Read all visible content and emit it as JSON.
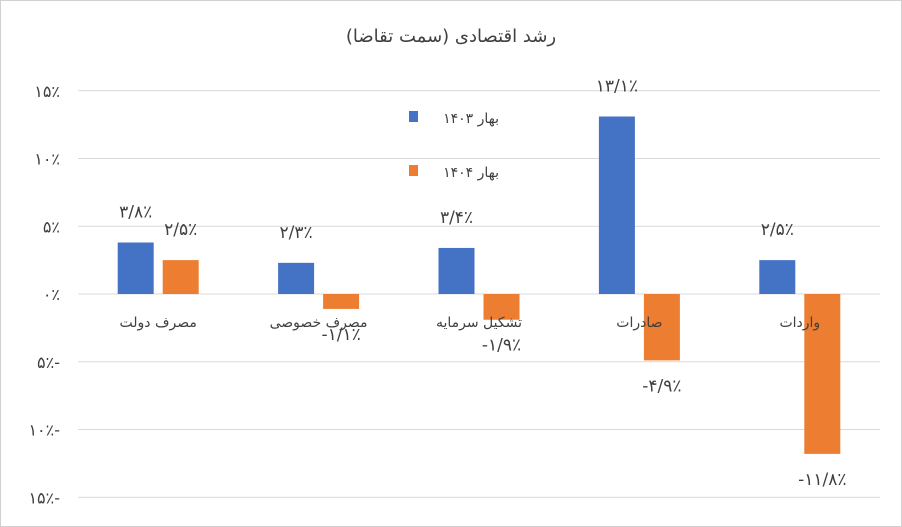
{
  "chart_data": {
    "type": "bar",
    "title": "رشد اقتصادی (سمت تقاضا)",
    "categories": [
      "مصرف دولت",
      "مصرف خصوصی",
      "تشکیل سرمایه",
      "صادرات",
      "واردات"
    ],
    "series": [
      {
        "name": "بهار ۱۴۰۳",
        "color": "#4472C4",
        "values": [
          3.8,
          2.3,
          3.4,
          13.1,
          2.5
        ],
        "labels": [
          "۳/۸٪",
          "۲/۳٪",
          "۳/۴٪",
          "۱۳/۱٪",
          "۲/۵٪"
        ]
      },
      {
        "name": "بهار ۱۴۰۴",
        "color": "#ED7D31",
        "values": [
          2.5,
          -1.1,
          -1.9,
          -4.9,
          -11.8
        ],
        "labels": [
          "۲/۵٪",
          "-۱/۱٪",
          "-۱/۹٪",
          "-۴/۹٪",
          "-۱۱/۸٪"
        ]
      }
    ],
    "y_ticks": [
      15,
      10,
      5,
      0,
      -5,
      -10,
      -15
    ],
    "y_tick_labels": [
      "۱۵٪",
      "۱۰٪",
      "۵٪",
      "۰٪",
      "۵٪-",
      "۱۰٪-",
      "۱۵٪-"
    ],
    "ylim": [
      -15,
      15
    ],
    "grid": true,
    "legend_position": "inside-top-center"
  }
}
